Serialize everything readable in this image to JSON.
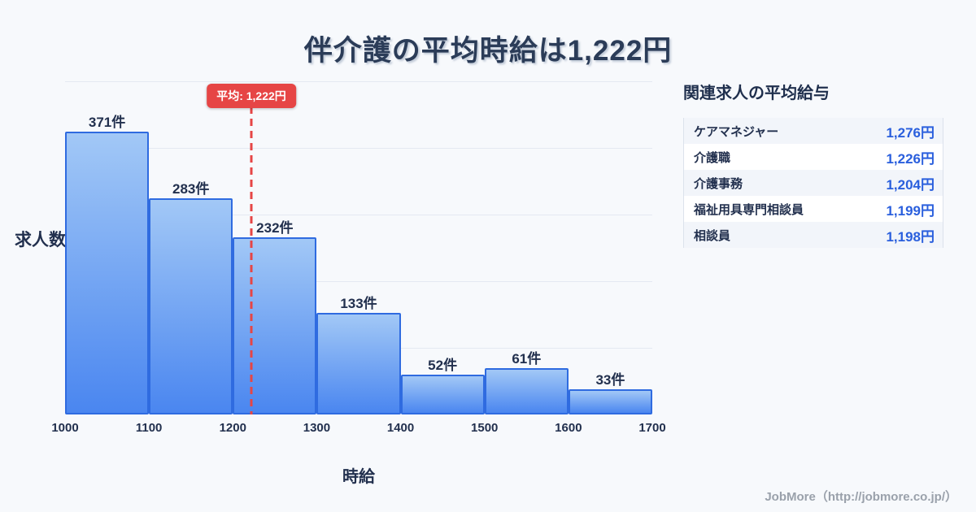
{
  "header": {
    "title": "伴介護の平均時給は1,222円"
  },
  "chart_data": {
    "type": "bar",
    "title": "伴介護の平均時給は1,222円",
    "xlabel": "時給",
    "ylabel": "求人数",
    "bin_edges": [
      1000,
      1100,
      1200,
      1300,
      1400,
      1500,
      1600,
      1700
    ],
    "x_ticks": [
      "1000",
      "1100",
      "1200",
      "1300",
      "1400",
      "1500",
      "1600",
      "1700"
    ],
    "values": [
      371,
      283,
      232,
      133,
      52,
      61,
      33
    ],
    "bar_labels": [
      "371件",
      "283件",
      "232件",
      "133件",
      "52件",
      "61件",
      "33件"
    ],
    "ylim": [
      0,
      437
    ],
    "grid": "horizontal",
    "legend": "none",
    "mean_line": {
      "value": 1222,
      "label": "平均: 1,222円"
    }
  },
  "panel": {
    "heading": "関連求人の平均給与",
    "rows": [
      {
        "label": "ケアマネジャー",
        "value": "1,276円"
      },
      {
        "label": "介護職",
        "value": "1,226円"
      },
      {
        "label": "介護事務",
        "value": "1,204円"
      },
      {
        "label": "福祉用具専門相談員",
        "value": "1,199円"
      },
      {
        "label": "相談員",
        "value": "1,198円"
      }
    ]
  },
  "footer": {
    "credit": "JobMore（http://jobmore.co.jp/）"
  },
  "colors": {
    "background": "#f7f9fc",
    "bar_gradient_top": "#a2c8f6",
    "bar_gradient_bottom": "#4a86f0",
    "bar_border": "#2f6be0",
    "mean_red": "#e64545",
    "value_blue": "#2a5fdd",
    "text_navy": "#22304e",
    "gridline": "#e4e9f2",
    "footer_gray": "#9aa1ab"
  }
}
